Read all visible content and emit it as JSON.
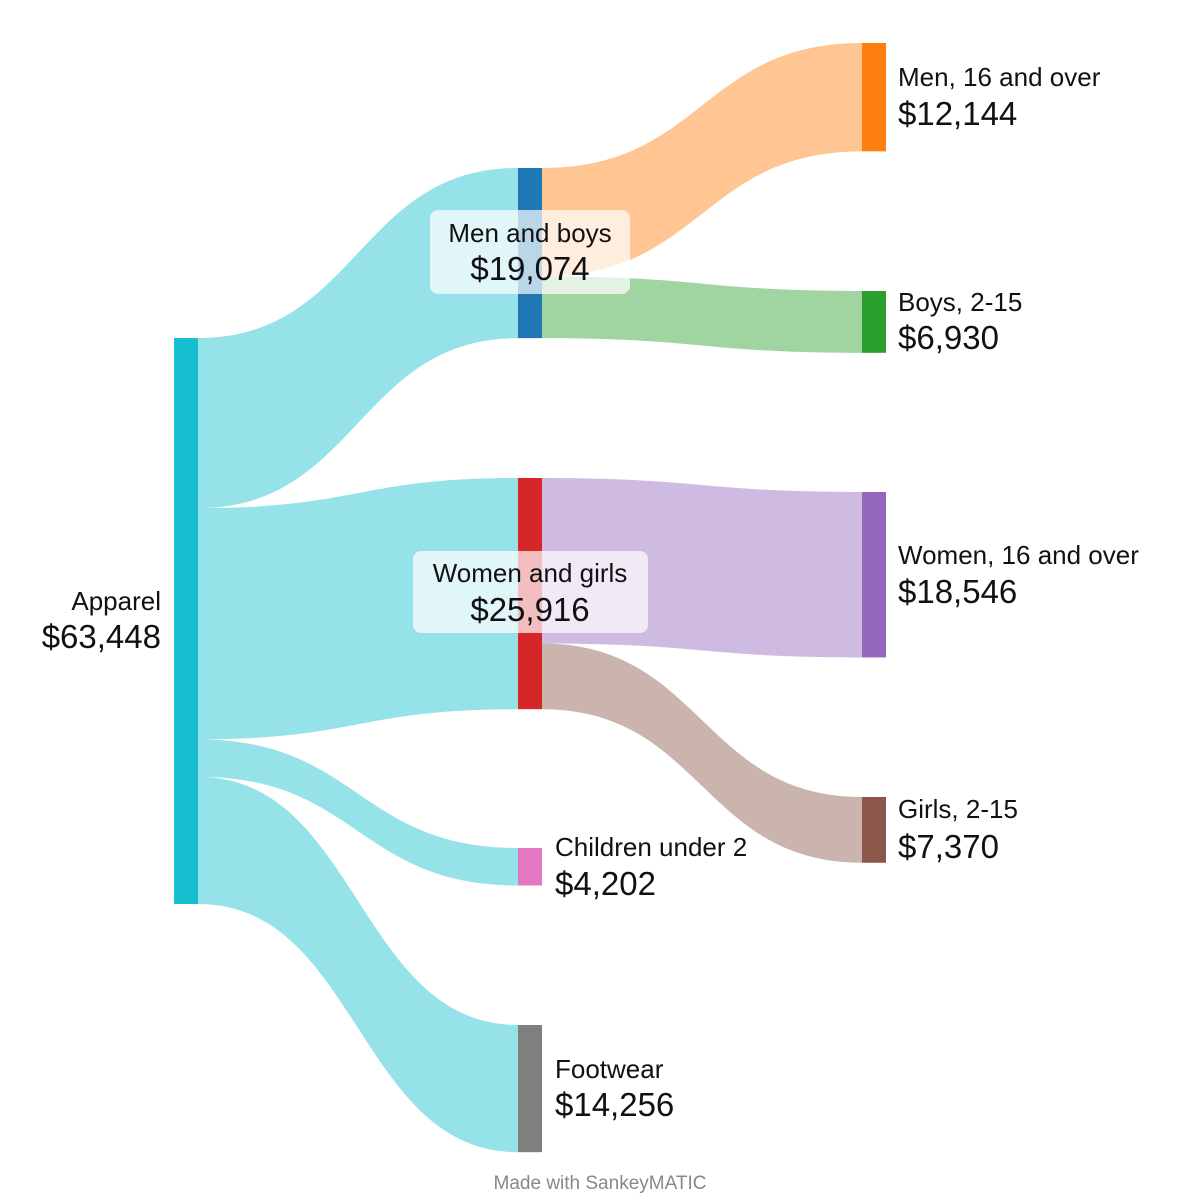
{
  "chart_data": {
    "type": "sankey",
    "nodes": [
      {
        "id": "apparel",
        "name": "Apparel",
        "value_label": "$63,448",
        "value": 63448,
        "color": "#17becf"
      },
      {
        "id": "men_boys",
        "name": "Men and boys",
        "value_label": "$19,074",
        "value": 19074,
        "color": "#1f77b4"
      },
      {
        "id": "women_girls",
        "name": "Women and girls",
        "value_label": "$25,916",
        "value": 25916,
        "color": "#d62728"
      },
      {
        "id": "children",
        "name": "Children under 2",
        "value_label": "$4,202",
        "value": 4202,
        "color": "#e377c2"
      },
      {
        "id": "footwear",
        "name": "Footwear",
        "value_label": "$14,256",
        "value": 14256,
        "color": "#7f7f7f"
      },
      {
        "id": "men16",
        "name": "Men, 16 and over",
        "value_label": "$12,144",
        "value": 12144,
        "color": "#ff7f0e"
      },
      {
        "id": "boys",
        "name": "Boys, 2-15",
        "value_label": "$6,930",
        "value": 6930,
        "color": "#2ca02c"
      },
      {
        "id": "women16",
        "name": "Women, 16 and over",
        "value_label": "$18,546",
        "value": 18546,
        "color": "#9467bd"
      },
      {
        "id": "girls",
        "name": "Girls, 2-15",
        "value_label": "$7,370",
        "value": 7370,
        "color": "#8c564b"
      }
    ],
    "links": [
      {
        "source": "apparel",
        "target": "men_boys",
        "value": 19074,
        "color": "#17becf"
      },
      {
        "source": "apparel",
        "target": "women_girls",
        "value": 25916,
        "color": "#17becf"
      },
      {
        "source": "apparel",
        "target": "children",
        "value": 4202,
        "color": "#17becf"
      },
      {
        "source": "apparel",
        "target": "footwear",
        "value": 14256,
        "color": "#17becf"
      },
      {
        "source": "men_boys",
        "target": "men16",
        "value": 12144,
        "color": "#ff7f0e"
      },
      {
        "source": "men_boys",
        "target": "boys",
        "value": 6930,
        "color": "#2ca02c"
      },
      {
        "source": "women_girls",
        "target": "women16",
        "value": 18546,
        "color": "#9467bd"
      },
      {
        "source": "women_girls",
        "target": "girls",
        "value": 7370,
        "color": "#8c564b"
      }
    ]
  },
  "footer": {
    "credit": "Made with SankeyMATIC"
  }
}
